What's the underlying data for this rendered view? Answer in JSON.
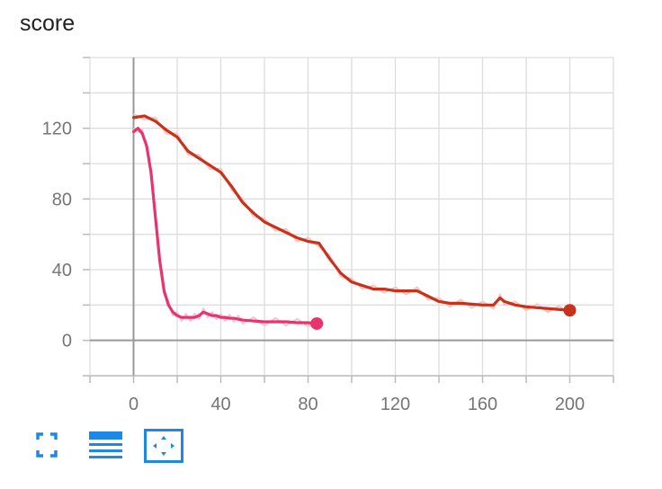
{
  "chart_data": {
    "type": "line",
    "title": "score",
    "xlabel": "",
    "ylabel": "",
    "xlim": [
      -20,
      220
    ],
    "ylim": [
      -20,
      160
    ],
    "x_ticks": [
      0,
      40,
      80,
      120,
      160,
      200
    ],
    "y_ticks": [
      0,
      40,
      80,
      120
    ],
    "grid": true,
    "series": [
      {
        "color": "#e8336e",
        "raw_color": "#f6c1d1",
        "x": [
          0,
          2,
          4,
          6,
          8,
          10,
          12,
          14,
          16,
          18,
          20,
          22,
          24,
          26,
          28,
          30,
          32,
          34,
          36,
          38,
          40,
          42,
          44,
          46,
          48,
          50,
          55,
          60,
          65,
          70,
          75,
          80,
          84
        ],
        "y": [
          118,
          120,
          117,
          110,
          95,
          70,
          45,
          28,
          20,
          16,
          14,
          13,
          13,
          13,
          13,
          14,
          16,
          15,
          14,
          14,
          13,
          13,
          12.5,
          12.5,
          12,
          11.5,
          11,
          10.5,
          10.5,
          10.5,
          10,
          10,
          9.5
        ]
      },
      {
        "color": "#c9311c",
        "raw_color": "#f2c8be",
        "x": [
          0,
          5,
          10,
          15,
          20,
          25,
          30,
          35,
          40,
          45,
          50,
          55,
          60,
          65,
          70,
          75,
          80,
          85,
          90,
          95,
          100,
          105,
          110,
          115,
          120,
          125,
          130,
          135,
          140,
          145,
          150,
          155,
          160,
          165,
          168,
          170,
          175,
          180,
          185,
          190,
          195,
          200
        ],
        "y": [
          126,
          127,
          124,
          119,
          115,
          107,
          103,
          99,
          95,
          87,
          78,
          72,
          67,
          64,
          61,
          58,
          56,
          55,
          46,
          38,
          33,
          31,
          29,
          29,
          28,
          28,
          28,
          25,
          22,
          21,
          21,
          20.5,
          20,
          20,
          24,
          22,
          20,
          19,
          18.5,
          18,
          17.5,
          17
        ]
      }
    ]
  },
  "toolbar": {
    "expand_icon": "fullscreen-expand-icon",
    "list_icon": "lines-list-icon",
    "fit_icon": "fit-domain-icon"
  }
}
